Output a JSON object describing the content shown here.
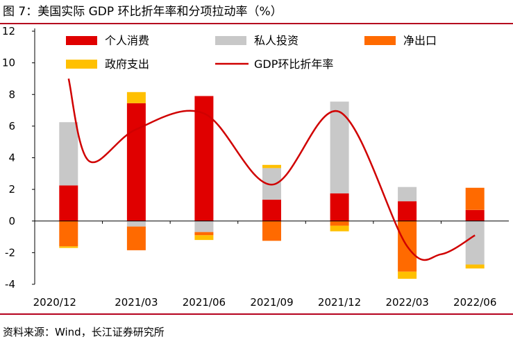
{
  "title": "图 7：美国实际 GDP 环比折年率和分项拉动率（%）",
  "source": "资料来源：Wind，长江证券研究所",
  "chart_data": {
    "type": "bar",
    "stacked": true,
    "categories": [
      "2020/12",
      "2021/03",
      "2021/06",
      "2021/09",
      "2021/12",
      "2022/03",
      "2022/06"
    ],
    "ylim": [
      -4,
      12
    ],
    "yticks": [
      -4,
      -2,
      0,
      2,
      4,
      6,
      8,
      10,
      12
    ],
    "legend_position": "top",
    "series": [
      {
        "name": "个人消费",
        "color": "#e00000",
        "values": [
          2.25,
          7.45,
          7.9,
          1.35,
          1.75,
          1.25,
          0.7
        ]
      },
      {
        "name": "私人投资",
        "color": "#c8c8c8",
        "values": [
          4.0,
          -0.35,
          -0.7,
          2.0,
          5.8,
          0.9,
          -2.75
        ]
      },
      {
        "name": "净出口",
        "color": "#ff6a00",
        "values": [
          -1.6,
          -1.5,
          -0.2,
          -1.25,
          -0.3,
          -3.2,
          1.4
        ]
      },
      {
        "name": "政府支出",
        "color": "#ffc000",
        "values": [
          -0.1,
          0.7,
          -0.3,
          0.2,
          -0.35,
          -0.45,
          -0.25
        ]
      }
    ],
    "line": {
      "name": "GDP环比折年率",
      "color": "#d00000",
      "points": [
        {
          "x": 0,
          "y": 9.0
        },
        {
          "x": 0.3,
          "y": 3.8
        },
        {
          "x": 1,
          "y": 5.8
        },
        {
          "x": 2,
          "y": 6.8
        },
        {
          "x": 3,
          "y": 2.3
        },
        {
          "x": 4,
          "y": 6.9
        },
        {
          "x": 5,
          "y": -1.6
        },
        {
          "x": 5.5,
          "y": -2.1
        },
        {
          "x": 6,
          "y": -0.9
        }
      ]
    }
  }
}
